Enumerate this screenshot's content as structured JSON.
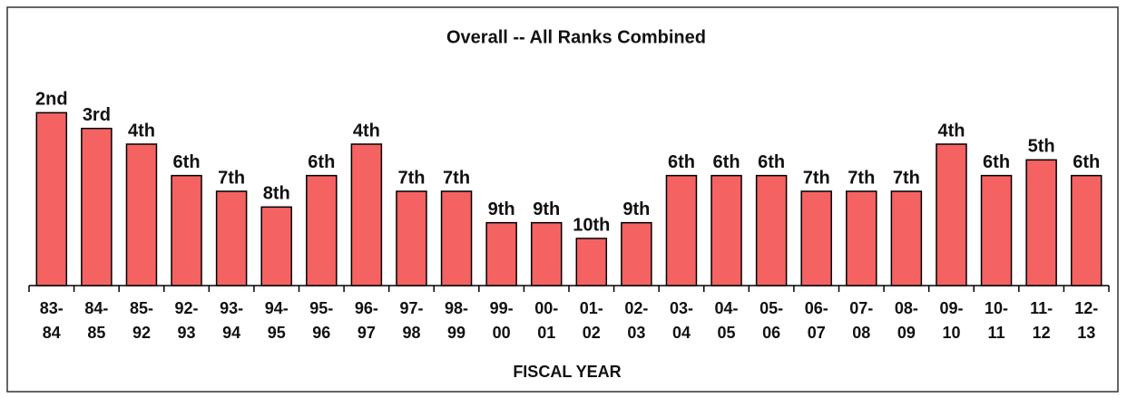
{
  "chart_data": {
    "type": "bar",
    "title": "Overall -- All Ranks Combined",
    "x_label": "FISCAL YEAR",
    "categories": [
      "83-84",
      "84-85",
      "85-92",
      "92-93",
      "93-94",
      "94-95",
      "95-96",
      "96-97",
      "97-98",
      "98-99",
      "99-00",
      "00-01",
      "01-02",
      "02-03",
      "03-04",
      "04-05",
      "05-06",
      "06-07",
      "07-08",
      "08-09",
      "09-10",
      "10-11",
      "11-12",
      "12-13"
    ],
    "values": [
      2,
      3,
      4,
      6,
      7,
      8,
      6,
      4,
      7,
      7,
      9,
      9,
      10,
      9,
      6,
      6,
      6,
      7,
      7,
      7,
      4,
      6,
      5,
      6
    ],
    "value_labels": [
      "2nd",
      "3rd",
      "4th",
      "6th",
      "7th",
      "8th",
      "6th",
      "4th",
      "7th",
      "7th",
      "9th",
      "9th",
      "10th",
      "9th",
      "6th",
      "6th",
      "6th",
      "7th",
      "7th",
      "7th",
      "4th",
      "6th",
      "5th",
      "6th"
    ],
    "color": "#f46262",
    "ylim": [
      13,
      1
    ]
  }
}
